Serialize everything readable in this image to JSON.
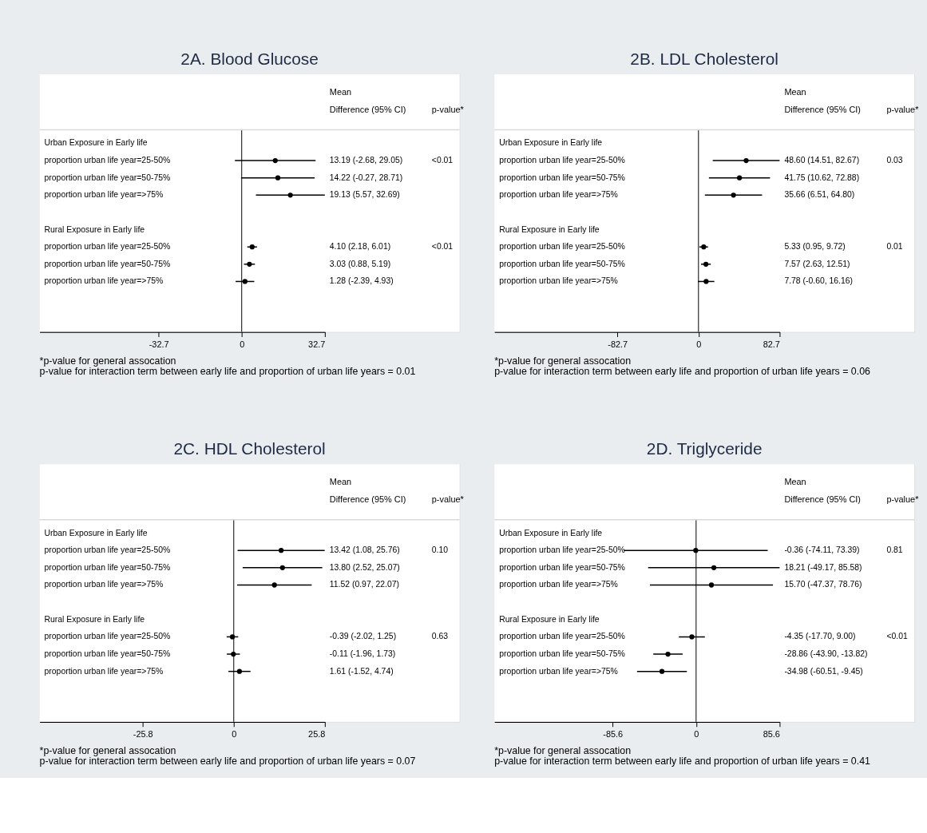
{
  "chart_data": [
    {
      "type": "scatter",
      "orientation": "horizontal",
      "title": "2A. Blood Glucose",
      "color": "#000000",
      "marker": "circle",
      "categories": [
        "Urban Exposure in Early life",
        "proportion urban life year=25-50%",
        "proportion urban life year=50-75%",
        "proportion urban life year=>75%",
        null,
        "Rural Exposure in Early life",
        "proportion urban life year=25-50%",
        "proportion urban life year=50-75%",
        "proportion urban life year=>75%"
      ],
      "values": [
        null,
        13.19,
        14.22,
        19.13,
        null,
        null,
        4.1,
        3.03,
        1.28
      ],
      "errors": [
        null,
        [
          -2.68,
          29.05
        ],
        [
          -0.27,
          28.71
        ],
        [
          5.57,
          32.69
        ],
        null,
        null,
        [
          2.18,
          6.01
        ],
        [
          0.88,
          5.19
        ],
        [
          -2.39,
          4.93
        ]
      ],
      "xlim": [
        -79.5,
        32.7
      ],
      "xticks": [
        -32.7,
        0,
        32.7
      ],
      "ref_lines": [
        {
          "axis": "x",
          "value": 0
        }
      ],
      "annotations": [
        "Mean",
        "Difference (95% CI)",
        "p-value*",
        "13.19 (-2.68, 29.05)",
        "14.22 (-0.27, 28.71)",
        "19.13 (5.57, 32.69)",
        "4.10 (2.18, 6.01)",
        "3.03 (0.88, 5.19)",
        "1.28 (-2.39, 4.93)",
        "<0.01",
        "<0.01",
        "*p-value for general assocation",
        "p-value for interaction term between early life and proportion of urban life years = 0.01"
      ]
    },
    {
      "type": "scatter",
      "orientation": "horizontal",
      "title": "2B. LDL Cholesterol",
      "color": "#000000",
      "marker": "circle",
      "categories": [
        "Urban Exposure in Early life",
        "proportion urban life year=25-50%",
        "proportion urban life year=50-75%",
        "proportion urban life year=>75%",
        null,
        "Rural Exposure in Early life",
        "proportion urban life year=25-50%",
        "proportion urban life year=50-75%",
        "proportion urban life year=>75%"
      ],
      "values": [
        null,
        48.6,
        41.75,
        35.66,
        null,
        null,
        5.33,
        7.57,
        7.78
      ],
      "errors": [
        null,
        [
          14.51,
          82.67
        ],
        [
          10.62,
          72.88
        ],
        [
          6.51,
          64.8
        ],
        null,
        null,
        [
          0.95,
          9.72
        ],
        [
          2.63,
          12.51
        ],
        [
          -0.6,
          16.16
        ]
      ],
      "xlim": [
        -208,
        82.7
      ],
      "xticks": [
        -82.7,
        0,
        82.7
      ],
      "ref_lines": [
        {
          "axis": "x",
          "value": 0
        }
      ],
      "annotations": [
        "Mean",
        "Difference (95% CI)",
        "p-value*",
        "48.60 (14.51, 82.67)",
        "41.75 (10.62, 72.88)",
        "35.66 (6.51, 64.80)",
        "5.33 (0.95, 9.72)",
        "7.57 (2.63, 12.51)",
        "7.78 (-0.60, 16.16)",
        "0.03",
        "0.01",
        "*p-value for general assocation",
        "p-value for interaction term between early life and proportion of urban life years = 0.06"
      ]
    },
    {
      "type": "scatter",
      "orientation": "horizontal",
      "title": "2C. HDL Cholesterol",
      "color": "#000000",
      "marker": "circle",
      "categories": [
        "Urban Exposure in Early life",
        "proportion urban life year=25-50%",
        "proportion urban life year=50-75%",
        "proportion urban life year=>75%",
        null,
        "Rural Exposure in Early life",
        "proportion urban life year=25-50%",
        "proportion urban life year=50-75%",
        "proportion urban life year=>75%"
      ],
      "values": [
        null,
        13.42,
        13.8,
        11.52,
        null,
        null,
        -0.39,
        -0.11,
        1.61
      ],
      "errors": [
        null,
        [
          1.08,
          25.76
        ],
        [
          2.52,
          25.07
        ],
        [
          0.97,
          22.07
        ],
        null,
        null,
        [
          -2.02,
          1.25
        ],
        [
          -1.96,
          1.73
        ],
        [
          -1.52,
          4.74
        ]
      ],
      "xlim": [
        -55,
        25.8
      ],
      "xticks": [
        -25.8,
        0,
        25.8
      ],
      "ref_lines": [
        {
          "axis": "x",
          "value": 0
        }
      ],
      "annotations": [
        "Mean",
        "Difference (95% CI)",
        "p-value*",
        "13.42 (1.08, 25.76)",
        "13.80 (2.52, 25.07)",
        "11.52 (0.97, 22.07)",
        "-0.39 (-2.02, 1.25)",
        "-0.11 (-1.96, 1.73)",
        "1.61 (-1.52, 4.74)",
        "0.10",
        "0.63",
        "*p-value for general assocation",
        "p-value for interaction term between early life and proportion of urban life years = 0.07"
      ]
    },
    {
      "type": "scatter",
      "orientation": "horizontal",
      "title": "2D. Triglyceride",
      "color": "#000000",
      "marker": "circle",
      "categories": [
        "Urban Exposure in Early life",
        "proportion urban life year=25-50%",
        "proportion urban life year=50-75%",
        "proportion urban life year=>75%",
        null,
        "Rural Exposure in Early life",
        "proportion urban life year=25-50%",
        "proportion urban life year=50-75%",
        "proportion urban life year=>75%"
      ],
      "values": [
        null,
        -0.36,
        18.21,
        15.7,
        null,
        null,
        -4.35,
        -28.86,
        -34.98
      ],
      "errors": [
        null,
        [
          -74.11,
          73.39
        ],
        [
          -49.17,
          85.58
        ],
        [
          -47.37,
          78.76
        ],
        null,
        null,
        [
          -17.7,
          9.0
        ],
        [
          -43.9,
          -13.82
        ],
        [
          -60.51,
          -9.45
        ]
      ],
      "xlim": [
        -206.7,
        85.6
      ],
      "xticks": [
        -85.6,
        0,
        85.6
      ],
      "ref_lines": [
        {
          "axis": "x",
          "value": 0
        }
      ],
      "annotations": [
        "Mean",
        "Difference (95% CI)",
        "p-value*",
        "-0.36 (-74.11, 73.39)",
        "18.21 (-49.17, 85.58)",
        "15.70 (-47.37, 78.76)",
        "-4.35 (-17.70, 9.00)",
        "-28.86 (-43.90, -13.82)",
        "-34.98 (-60.51, -9.45)",
        "0.81",
        "<0.01",
        "*p-value for general assocation",
        "p-value for interaction term between early life and proportion of urban life years = 0.41"
      ]
    }
  ]
}
